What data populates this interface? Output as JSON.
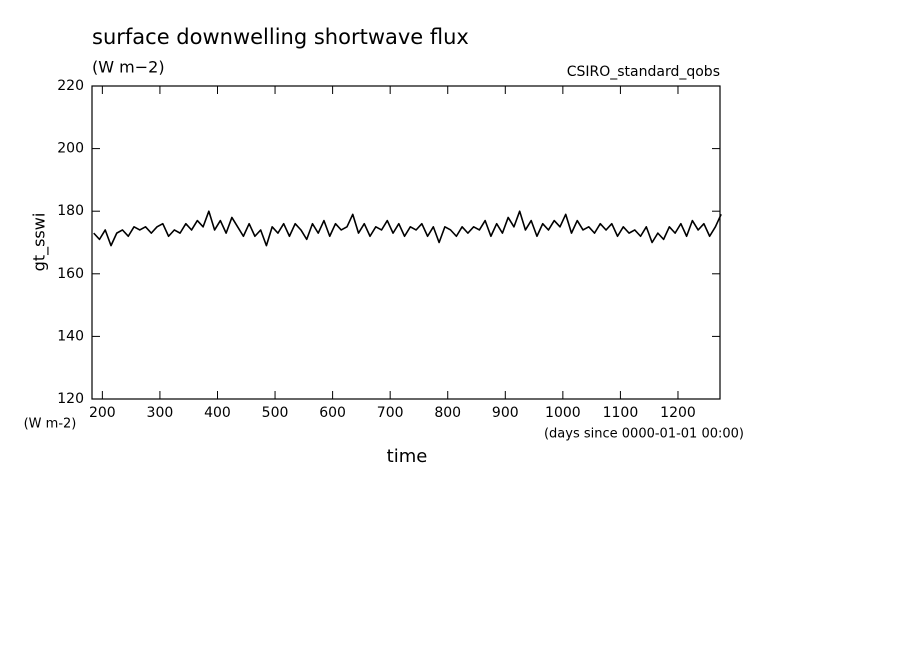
{
  "chart_data": {
    "type": "line",
    "title": "surface downwelling shortwave flux",
    "subtitle": "(W m−2)",
    "dataset_label": "CSIRO_standard_qobs",
    "y_label": "gt_sswi",
    "y_units": "(W m-2)",
    "x_label": "time",
    "x_units": "(days since 0000-01-01 00:00)",
    "xlim": [
      182,
      1273
    ],
    "ylim": [
      120,
      220
    ],
    "xticks": [
      200,
      300,
      400,
      500,
      600,
      700,
      800,
      900,
      1000,
      1100,
      1200
    ],
    "yticks": [
      120,
      140,
      160,
      180,
      200,
      220
    ],
    "x": [
      185,
      195,
      205,
      215,
      225,
      235,
      245,
      255,
      265,
      275,
      285,
      295,
      305,
      315,
      325,
      335,
      345,
      355,
      365,
      375,
      385,
      395,
      405,
      415,
      425,
      435,
      445,
      455,
      465,
      475,
      485,
      495,
      505,
      515,
      525,
      535,
      545,
      555,
      565,
      575,
      585,
      595,
      605,
      615,
      625,
      635,
      645,
      655,
      665,
      675,
      685,
      695,
      705,
      715,
      725,
      735,
      745,
      755,
      765,
      775,
      785,
      795,
      805,
      815,
      825,
      835,
      845,
      855,
      865,
      875,
      885,
      895,
      905,
      915,
      925,
      935,
      945,
      955,
      965,
      975,
      985,
      995,
      1005,
      1015,
      1025,
      1035,
      1045,
      1055,
      1065,
      1075,
      1085,
      1095,
      1105,
      1115,
      1125,
      1135,
      1145,
      1155,
      1165,
      1175,
      1185,
      1195,
      1205,
      1215,
      1225,
      1235,
      1245,
      1255,
      1265,
      1275
    ],
    "series": [
      {
        "color": "#000000",
        "values": [
          173,
          171,
          174,
          169,
          173,
          174,
          172,
          175,
          174,
          175,
          173,
          175,
          176,
          172,
          174,
          173,
          176,
          174,
          177,
          175,
          180,
          174,
          177,
          173,
          178,
          175,
          172,
          176,
          172,
          174,
          169,
          175,
          173,
          176,
          172,
          176,
          174,
          171,
          176,
          173,
          177,
          172,
          176,
          174,
          175,
          179,
          173,
          176,
          172,
          175,
          174,
          177,
          173,
          176,
          172,
          175,
          174,
          176,
          172,
          175,
          170,
          175,
          174,
          172,
          175,
          173,
          175,
          174,
          177,
          172,
          176,
          173,
          178,
          175,
          180,
          174,
          177,
          172,
          176,
          174,
          177,
          175,
          179,
          173,
          177,
          174,
          175,
          173,
          176,
          174,
          176,
          172,
          175,
          173,
          174,
          172,
          175,
          170,
          173,
          171,
          175,
          173,
          176,
          172,
          177,
          174,
          176,
          172,
          175,
          179
        ]
      }
    ]
  }
}
